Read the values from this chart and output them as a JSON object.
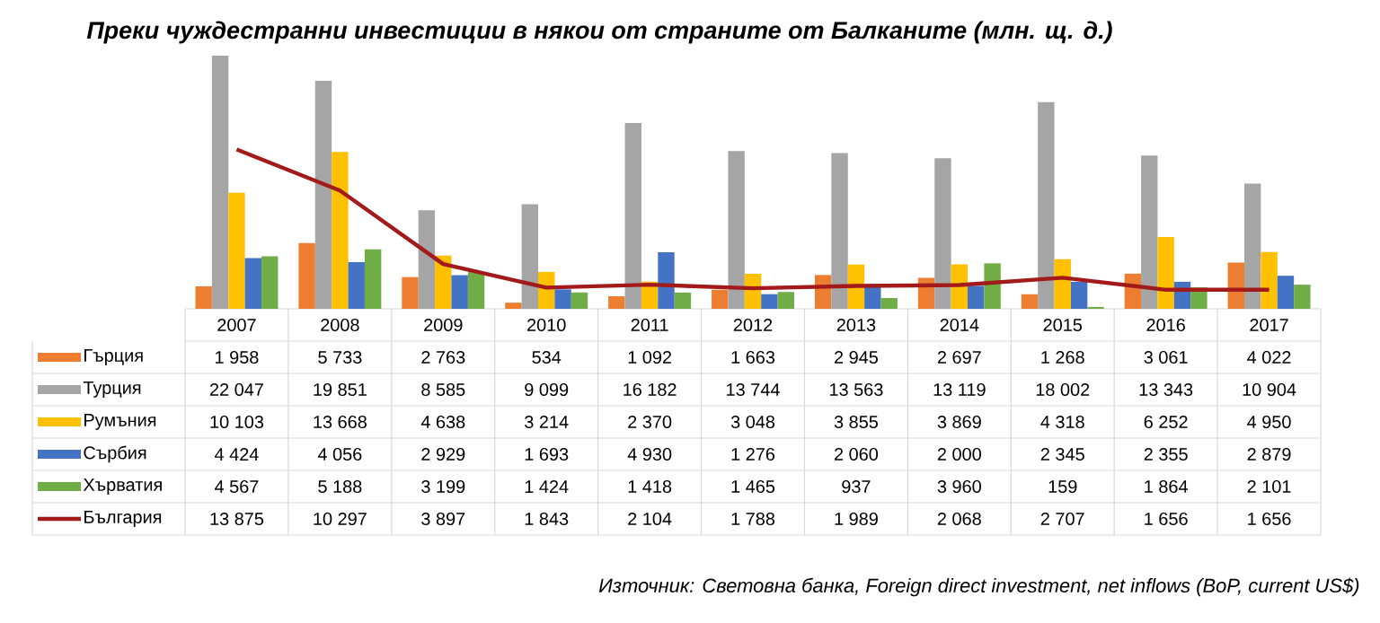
{
  "chart_data": {
    "type": "bar",
    "title": "Преки чуждестранни инвестиции в някои от страните от Балканите (млн. щ. д.)",
    "categories": [
      "2007",
      "2008",
      "2009",
      "2010",
      "2011",
      "2012",
      "2013",
      "2014",
      "2015",
      "2016",
      "2017"
    ],
    "series": [
      {
        "name": "Гърция",
        "color": "#ed7d31",
        "values": [
          1958,
          5733,
          2763,
          534,
          1092,
          1663,
          2945,
          2697,
          1268,
          3061,
          4022
        ],
        "value_labels": [
          "1 958",
          "5 733",
          "2 763",
          "534",
          "1 092",
          "1 663",
          "2 945",
          "2 697",
          "1 268",
          "3 061",
          "4 022"
        ]
      },
      {
        "name": "Турция",
        "color": "#a5a5a5",
        "values": [
          22047,
          19851,
          8585,
          9099,
          16182,
          13744,
          13563,
          13119,
          18002,
          13343,
          10904
        ],
        "value_labels": [
          "22 047",
          "19 851",
          "8 585",
          "9 099",
          "16 182",
          "13 744",
          "13 563",
          "13 119",
          "18 002",
          "13 343",
          "10 904"
        ]
      },
      {
        "name": "Румъния",
        "color": "#ffc000",
        "values": [
          10103,
          13668,
          4638,
          3214,
          2370,
          3048,
          3855,
          3869,
          4318,
          6252,
          4950
        ],
        "value_labels": [
          "10 103",
          "13 668",
          "4 638",
          "3 214",
          "2 370",
          "3 048",
          "3 855",
          "3 869",
          "4 318",
          "6 252",
          "4 950"
        ]
      },
      {
        "name": "Сърбия",
        "color": "#4472c4",
        "values": [
          4424,
          4056,
          2929,
          1693,
          4930,
          1276,
          2060,
          2000,
          2345,
          2355,
          2879
        ],
        "value_labels": [
          "4 424",
          "4 056",
          "2 929",
          "1 693",
          "4 930",
          "1 276",
          "2 060",
          "2 000",
          "2 345",
          "2 355",
          "2 879"
        ]
      },
      {
        "name": "Хърватия",
        "color": "#70ad47",
        "values": [
          4567,
          5188,
          3199,
          1424,
          1418,
          1465,
          937,
          3960,
          159,
          1864,
          2101
        ],
        "value_labels": [
          "4 567",
          "5 188",
          "3 199",
          "1 424",
          "1 418",
          "1 465",
          "937",
          "3 960",
          "159",
          "1 864",
          "2 101"
        ]
      },
      {
        "name": "България",
        "color": "#a31a1a",
        "type": "line",
        "values": [
          13875,
          10297,
          3897,
          1843,
          2104,
          1788,
          1989,
          2068,
          2707,
          1656,
          1656
        ],
        "value_labels": [
          "13 875",
          "10 297",
          "3 897",
          "1 843",
          "2 104",
          "1 788",
          "1 989",
          "2 068",
          "2 707",
          "1 656",
          "1 656"
        ]
      }
    ],
    "legend": "bottom",
    "annotations": [
      "Източник: Световна банка, Foreign direct investment, net inflows (BoP, current US$)"
    ]
  }
}
